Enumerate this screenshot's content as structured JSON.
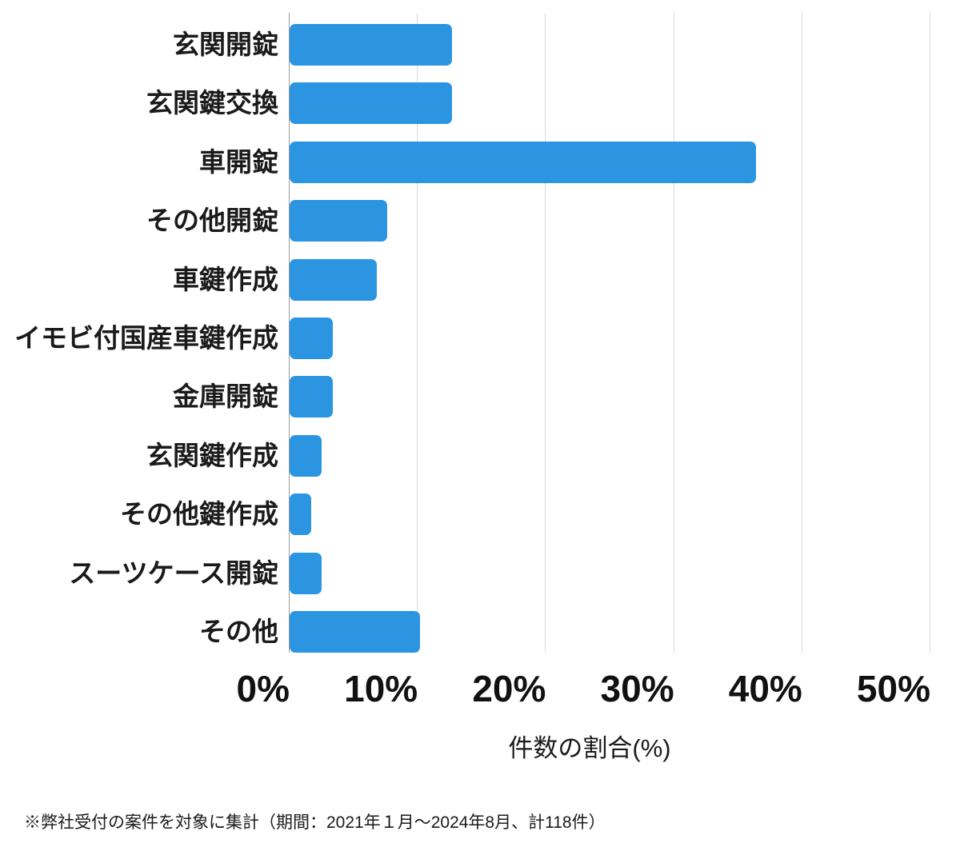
{
  "chart_data": {
    "type": "bar",
    "orientation": "horizontal",
    "title": "",
    "categories": [
      "玄関開錠",
      "玄関鍵交換",
      "車開錠",
      "その他開錠",
      "車鍵作成",
      "イモビ付国産車鍵作成",
      "金庫開錠",
      "玄関鍵作成",
      "その他鍵作成",
      "スーツケース開錠",
      "その他"
    ],
    "values": [
      12.7,
      12.7,
      36.4,
      7.6,
      6.8,
      3.4,
      3.4,
      2.5,
      1.7,
      2.5,
      10.2
    ],
    "unit": "%",
    "xlabel": "件数の割合(%)",
    "x_ticks": [
      "0%",
      "10%",
      "20%",
      "30%",
      "40%",
      "50%"
    ],
    "x_tick_values": [
      0,
      10,
      20,
      30,
      40,
      50
    ],
    "xlim": [
      0,
      50
    ],
    "grid": "vertical-only",
    "legend": "none",
    "bar_color": "#2b95e1",
    "gridline_color": "#d9d9d9",
    "axis_line_color": "#9b9b9b",
    "text_color": "#1a1a1a"
  },
  "footnote": "※弊社受付の案件を対象に集計（期間：2021年１月～2024年8月、計118件）"
}
